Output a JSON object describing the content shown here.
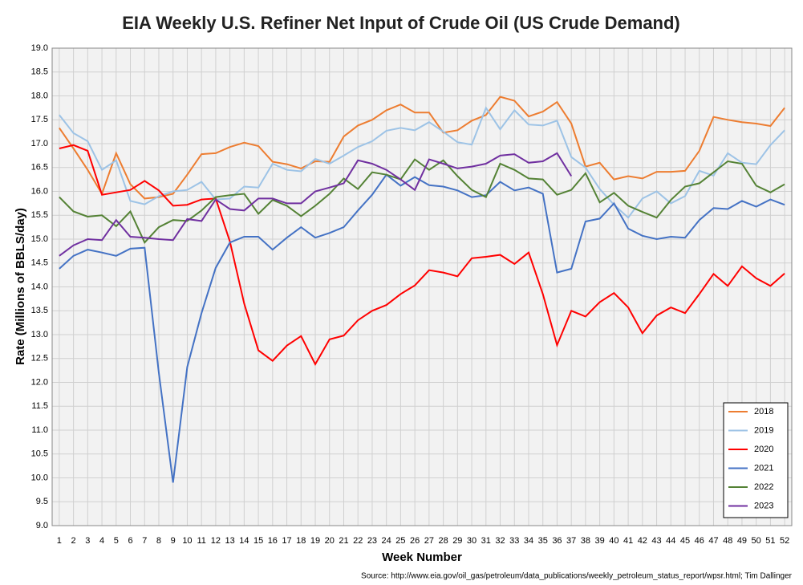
{
  "chart_data": {
    "type": "line",
    "title": "EIA Weekly U.S. Refiner Net Input of Crude Oil (US Crude Demand)",
    "x_label": "Week Number",
    "y_label": "Rate (Millions of BBLS/day)",
    "source": "Source: http://www.eia.gov/oil_gas/petroleum/data_publications/weekly_petroleum_status_report/wpsr.html; Tim Dallinger",
    "x": [
      1,
      2,
      3,
      4,
      5,
      6,
      7,
      8,
      9,
      10,
      11,
      12,
      13,
      14,
      15,
      16,
      17,
      18,
      19,
      20,
      21,
      22,
      23,
      24,
      25,
      26,
      27,
      28,
      29,
      30,
      31,
      32,
      33,
      34,
      35,
      36,
      37,
      38,
      39,
      40,
      41,
      42,
      43,
      44,
      45,
      46,
      47,
      48,
      49,
      50,
      51,
      52
    ],
    "xlim": [
      0.5,
      52.5
    ],
    "xticks": [
      1,
      2,
      3,
      4,
      5,
      6,
      7,
      8,
      9,
      10,
      11,
      12,
      13,
      14,
      15,
      16,
      17,
      18,
      19,
      20,
      21,
      22,
      23,
      24,
      25,
      26,
      27,
      28,
      29,
      30,
      31,
      32,
      33,
      34,
      35,
      36,
      37,
      38,
      39,
      40,
      41,
      42,
      43,
      44,
      45,
      46,
      47,
      48,
      49,
      50,
      51,
      52
    ],
    "ylim": [
      9,
      19
    ],
    "yticks": [
      {
        "value": 9,
        "label": "9.0"
      },
      9.5,
      {
        "value": 10,
        "label": "10.0"
      },
      10.5,
      {
        "value": 11,
        "label": "11.0"
      },
      11.5,
      {
        "value": 12,
        "label": "12.0"
      },
      12.5,
      {
        "value": 13,
        "label": "13.0"
      },
      13.5,
      {
        "value": 14,
        "label": "14.0"
      },
      14.5,
      {
        "value": 15,
        "label": "15.0"
      },
      15.5,
      {
        "value": 16,
        "label": "16.0"
      },
      16.5,
      {
        "value": 17,
        "label": "17.0"
      },
      17.5,
      {
        "value": 18,
        "label": "18.0"
      },
      18.5,
      {
        "value": 19,
        "label": "19.0"
      }
    ],
    "grid": true,
    "legend": "lower right",
    "series": [
      {
        "name": "2018",
        "color": "#ed7d31",
        "values": [
          17.33,
          16.9,
          16.45,
          15.95,
          16.8,
          16.15,
          15.85,
          15.88,
          15.95,
          16.35,
          16.78,
          16.8,
          16.93,
          17.02,
          16.95,
          16.62,
          16.57,
          16.48,
          16.63,
          16.62,
          17.15,
          17.38,
          17.5,
          17.7,
          17.82,
          17.65,
          17.65,
          17.23,
          17.28,
          17.48,
          17.6,
          17.98,
          17.9,
          17.57,
          17.67,
          17.87,
          17.42,
          16.52,
          16.6,
          16.25,
          16.32,
          16.27,
          16.41,
          16.41,
          16.43,
          16.85,
          17.56,
          17.5,
          17.45,
          17.42,
          17.37,
          17.75
        ]
      },
      {
        "name": "2019",
        "color": "#9dc3e6",
        "values": [
          17.6,
          17.22,
          17.05,
          16.45,
          16.65,
          15.8,
          15.73,
          15.9,
          16.0,
          16.03,
          16.2,
          15.83,
          15.85,
          16.1,
          16.08,
          16.58,
          16.45,
          16.42,
          16.68,
          16.58,
          16.75,
          16.93,
          17.05,
          17.27,
          17.33,
          17.28,
          17.45,
          17.25,
          17.03,
          16.98,
          17.75,
          17.3,
          17.7,
          17.4,
          17.38,
          17.48,
          16.72,
          16.5,
          16.05,
          15.72,
          15.45,
          15.85,
          16.0,
          15.75,
          15.9,
          16.43,
          16.33,
          16.8,
          16.6,
          16.57,
          16.97,
          17.28
        ]
      },
      {
        "name": "2020",
        "color": "#ff0000",
        "values": [
          16.9,
          16.97,
          16.85,
          15.93,
          15.98,
          16.03,
          16.22,
          16.02,
          15.7,
          15.72,
          15.83,
          15.85,
          14.95,
          13.65,
          12.67,
          12.45,
          12.77,
          12.97,
          12.38,
          12.9,
          12.98,
          13.3,
          13.5,
          13.62,
          13.85,
          14.03,
          14.35,
          14.3,
          14.22,
          14.6,
          14.63,
          14.67,
          14.48,
          14.72,
          13.85,
          12.78,
          13.5,
          13.38,
          13.68,
          13.87,
          13.57,
          13.03,
          13.4,
          13.57,
          13.45,
          13.85,
          14.27,
          14.02,
          14.43,
          14.18,
          14.02,
          14.28
        ]
      },
      {
        "name": "2021",
        "color": "#4472c4",
        "values": [
          14.38,
          14.65,
          14.78,
          14.72,
          14.65,
          14.8,
          14.82,
          12.2,
          9.9,
          12.32,
          13.45,
          14.4,
          14.93,
          15.05,
          15.05,
          14.78,
          15.03,
          15.25,
          15.03,
          15.13,
          15.25,
          15.6,
          15.93,
          16.35,
          16.12,
          16.3,
          16.13,
          16.1,
          16.02,
          15.88,
          15.92,
          16.2,
          16.02,
          16.08,
          15.95,
          14.3,
          14.38,
          15.37,
          15.43,
          15.75,
          15.22,
          15.07,
          15.0,
          15.05,
          15.03,
          15.4,
          15.65,
          15.63,
          15.8,
          15.68,
          15.83,
          15.72
        ]
      },
      {
        "name": "2022",
        "color": "#548235",
        "values": [
          15.88,
          15.58,
          15.47,
          15.5,
          15.27,
          15.58,
          14.93,
          15.25,
          15.4,
          15.38,
          15.6,
          15.88,
          15.92,
          15.95,
          15.53,
          15.82,
          15.7,
          15.48,
          15.7,
          15.95,
          16.27,
          16.05,
          16.4,
          16.35,
          16.25,
          16.67,
          16.45,
          16.65,
          16.32,
          16.03,
          15.88,
          16.58,
          16.45,
          16.27,
          16.25,
          15.93,
          16.03,
          16.38,
          15.77,
          15.97,
          15.7,
          15.57,
          15.45,
          15.82,
          16.1,
          16.17,
          16.4,
          16.63,
          16.58,
          16.12,
          15.98,
          16.15
        ]
      },
      {
        "name": "2023",
        "color": "#7030a0",
        "values": [
          14.65,
          14.87,
          15.0,
          14.98,
          15.4,
          15.05,
          15.03,
          15.0,
          14.98,
          15.42,
          15.38,
          15.83,
          15.63,
          15.6,
          15.85,
          15.85,
          15.75,
          15.75,
          16.0,
          16.08,
          16.17,
          16.65,
          16.58,
          16.45,
          16.25,
          16.03,
          16.67,
          16.58,
          16.48,
          16.52,
          16.58,
          16.75,
          16.78,
          16.6,
          16.63,
          16.8,
          16.32,
          null,
          null,
          null,
          null,
          null,
          null,
          null,
          null,
          null,
          null,
          null,
          null,
          null,
          null,
          null
        ]
      }
    ]
  }
}
